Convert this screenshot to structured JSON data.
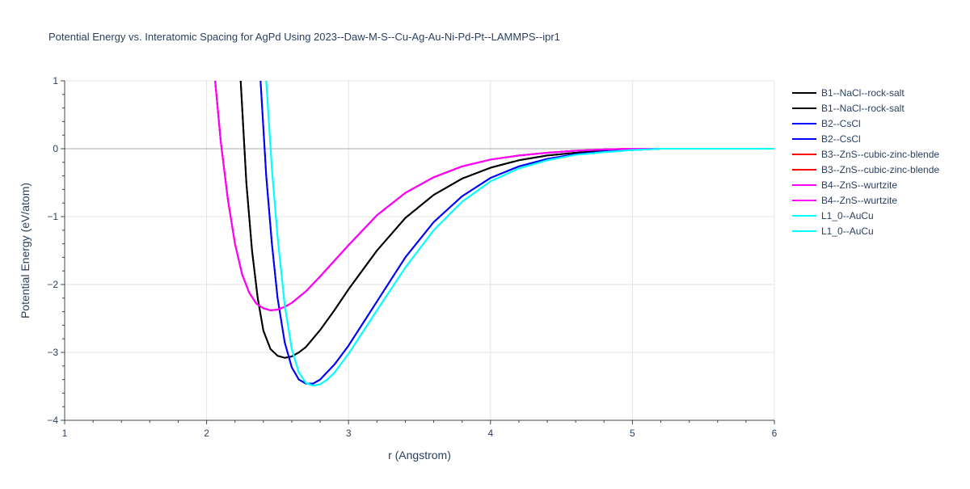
{
  "chart_data": {
    "type": "line",
    "title": "Potential Energy vs. Interatomic Spacing for AgPd Using 2023--Daw-M-S--Cu-Ag-Au-Ni-Pd-Pt--LAMMPS--ipr1",
    "xlabel": "r (Angstrom)",
    "ylabel": "Potential Energy (eV/atom)",
    "xlim": [
      1,
      6
    ],
    "ylim": [
      -4,
      1
    ],
    "xticks": [
      1,
      2,
      3,
      4,
      5,
      6
    ],
    "yticks": [
      -4,
      -3,
      -2,
      -1,
      0,
      1
    ],
    "ytick_labels": [
      "−4",
      "−3",
      "−2",
      "−1",
      "0",
      "1"
    ],
    "grid": true,
    "legend_position": "right",
    "series": [
      {
        "name": "B1--NaCl--rock-salt",
        "color": "#000000",
        "x": [
          2.24,
          2.28,
          2.32,
          2.36,
          2.4,
          2.45,
          2.5,
          2.55,
          2.6,
          2.65,
          2.7,
          2.8,
          2.9,
          3.0,
          3.2,
          3.4,
          3.6,
          3.8,
          4.0,
          4.2,
          4.4,
          4.6,
          4.8,
          5.0,
          5.2,
          6.0
        ],
        "y": [
          1.0,
          -0.5,
          -1.5,
          -2.2,
          -2.68,
          -2.95,
          -3.05,
          -3.08,
          -3.06,
          -3.0,
          -2.92,
          -2.67,
          -2.38,
          -2.07,
          -1.5,
          -1.02,
          -0.68,
          -0.44,
          -0.28,
          -0.17,
          -0.1,
          -0.06,
          -0.03,
          -0.01,
          0.0,
          0.0
        ]
      },
      {
        "name": "B1--NaCl--rock-salt",
        "color": "#000000",
        "x": [
          2.24,
          2.28,
          2.32,
          2.36,
          2.4,
          2.45,
          2.5,
          2.55,
          2.6,
          2.65,
          2.7,
          2.8,
          2.9,
          3.0,
          3.2,
          3.4,
          3.6,
          3.8,
          4.0,
          4.2,
          4.4,
          4.6,
          4.8,
          5.0,
          5.2,
          6.0
        ],
        "y": [
          1.0,
          -0.5,
          -1.5,
          -2.2,
          -2.68,
          -2.95,
          -3.05,
          -3.08,
          -3.06,
          -3.0,
          -2.92,
          -2.67,
          -2.38,
          -2.07,
          -1.5,
          -1.02,
          -0.68,
          -0.44,
          -0.28,
          -0.17,
          -0.1,
          -0.06,
          -0.03,
          -0.01,
          0.0,
          0.0
        ]
      },
      {
        "name": "B2--CsCl",
        "color": "#0000ff",
        "x": [
          2.38,
          2.42,
          2.46,
          2.5,
          2.55,
          2.6,
          2.65,
          2.7,
          2.75,
          2.8,
          2.9,
          3.0,
          3.2,
          3.4,
          3.6,
          3.8,
          4.0,
          4.2,
          4.4,
          4.6,
          4.8,
          5.0,
          5.2,
          6.0
        ],
        "y": [
          1.0,
          -0.4,
          -1.4,
          -2.2,
          -2.85,
          -3.22,
          -3.4,
          -3.46,
          -3.46,
          -3.4,
          -3.18,
          -2.9,
          -2.25,
          -1.6,
          -1.08,
          -0.7,
          -0.43,
          -0.26,
          -0.15,
          -0.08,
          -0.04,
          -0.02,
          0.0,
          0.0
        ]
      },
      {
        "name": "B2--CsCl",
        "color": "#0000ff",
        "x": [
          2.38,
          2.42,
          2.46,
          2.5,
          2.55,
          2.6,
          2.65,
          2.7,
          2.75,
          2.8,
          2.9,
          3.0,
          3.2,
          3.4,
          3.6,
          3.8,
          4.0,
          4.2,
          4.4,
          4.6,
          4.8,
          5.0,
          5.2,
          6.0
        ],
        "y": [
          1.0,
          -0.4,
          -1.4,
          -2.2,
          -2.85,
          -3.22,
          -3.4,
          -3.46,
          -3.46,
          -3.4,
          -3.18,
          -2.9,
          -2.25,
          -1.6,
          -1.08,
          -0.7,
          -0.43,
          -0.26,
          -0.15,
          -0.08,
          -0.04,
          -0.02,
          0.0,
          0.0
        ]
      },
      {
        "name": "B3--ZnS--cubic-zinc-blende",
        "color": "#ff0000",
        "x": [
          2.06,
          2.1,
          2.15,
          2.2,
          2.25,
          2.3,
          2.35,
          2.4,
          2.45,
          2.5,
          2.55,
          2.6,
          2.7,
          2.8,
          3.0,
          3.2,
          3.4,
          3.6,
          3.8,
          4.0,
          4.2,
          4.4,
          4.6,
          4.8,
          5.0,
          6.0
        ],
        "y": [
          1.0,
          0.1,
          -0.75,
          -1.4,
          -1.85,
          -2.12,
          -2.28,
          -2.35,
          -2.38,
          -2.37,
          -2.33,
          -2.27,
          -2.1,
          -1.88,
          -1.42,
          -0.98,
          -0.65,
          -0.42,
          -0.26,
          -0.16,
          -0.1,
          -0.06,
          -0.03,
          -0.01,
          0.0,
          0.0
        ]
      },
      {
        "name": "B3--ZnS--cubic-zinc-blende",
        "color": "#ff0000",
        "x": [
          2.06,
          2.1,
          2.15,
          2.2,
          2.25,
          2.3,
          2.35,
          2.4,
          2.45,
          2.5,
          2.55,
          2.6,
          2.7,
          2.8,
          3.0,
          3.2,
          3.4,
          3.6,
          3.8,
          4.0,
          4.2,
          4.4,
          4.6,
          4.8,
          5.0,
          6.0
        ],
        "y": [
          1.0,
          0.1,
          -0.75,
          -1.4,
          -1.85,
          -2.12,
          -2.28,
          -2.35,
          -2.38,
          -2.37,
          -2.33,
          -2.27,
          -2.1,
          -1.88,
          -1.42,
          -0.98,
          -0.65,
          -0.42,
          -0.26,
          -0.16,
          -0.1,
          -0.06,
          -0.03,
          -0.01,
          0.0,
          0.0
        ]
      },
      {
        "name": "B4--ZnS--wurtzite",
        "color": "#ff00ff",
        "x": [
          2.06,
          2.1,
          2.15,
          2.2,
          2.25,
          2.3,
          2.35,
          2.4,
          2.45,
          2.5,
          2.55,
          2.6,
          2.7,
          2.8,
          3.0,
          3.2,
          3.4,
          3.6,
          3.8,
          4.0,
          4.2,
          4.4,
          4.6,
          4.8,
          5.0,
          6.0
        ],
        "y": [
          1.0,
          0.1,
          -0.75,
          -1.4,
          -1.85,
          -2.12,
          -2.28,
          -2.35,
          -2.38,
          -2.37,
          -2.33,
          -2.27,
          -2.1,
          -1.88,
          -1.42,
          -0.98,
          -0.65,
          -0.42,
          -0.26,
          -0.16,
          -0.1,
          -0.06,
          -0.03,
          -0.01,
          0.0,
          0.0
        ]
      },
      {
        "name": "B4--ZnS--wurtzite",
        "color": "#ff00ff",
        "x": [
          2.06,
          2.1,
          2.15,
          2.2,
          2.25,
          2.3,
          2.35,
          2.4,
          2.45,
          2.5,
          2.55,
          2.6,
          2.7,
          2.8,
          3.0,
          3.2,
          3.4,
          3.6,
          3.8,
          4.0,
          4.2,
          4.4,
          4.6,
          4.8,
          5.0,
          6.0
        ],
        "y": [
          1.0,
          0.1,
          -0.75,
          -1.4,
          -1.85,
          -2.12,
          -2.28,
          -2.35,
          -2.38,
          -2.37,
          -2.33,
          -2.27,
          -2.1,
          -1.88,
          -1.42,
          -0.98,
          -0.65,
          -0.42,
          -0.26,
          -0.16,
          -0.1,
          -0.06,
          -0.03,
          -0.01,
          0.0,
          0.0
        ]
      },
      {
        "name": "L1_0--AuCu",
        "color": "#00ffff",
        "x": [
          2.42,
          2.46,
          2.5,
          2.55,
          2.6,
          2.65,
          2.7,
          2.75,
          2.8,
          2.85,
          2.9,
          3.0,
          3.2,
          3.4,
          3.6,
          3.8,
          4.0,
          4.2,
          4.4,
          4.6,
          4.8,
          5.0,
          5.2,
          6.0
        ],
        "y": [
          1.0,
          -0.3,
          -1.3,
          -2.3,
          -2.95,
          -3.3,
          -3.45,
          -3.49,
          -3.47,
          -3.4,
          -3.3,
          -3.02,
          -2.38,
          -1.75,
          -1.2,
          -0.78,
          -0.48,
          -0.29,
          -0.17,
          -0.09,
          -0.05,
          -0.02,
          0.0,
          0.0
        ]
      },
      {
        "name": "L1_0--AuCu",
        "color": "#00ffff",
        "x": [
          2.42,
          2.46,
          2.5,
          2.55,
          2.6,
          2.65,
          2.7,
          2.75,
          2.8,
          2.85,
          2.9,
          3.0,
          3.2,
          3.4,
          3.6,
          3.8,
          4.0,
          4.2,
          4.4,
          4.6,
          4.8,
          5.0,
          5.2,
          6.0
        ],
        "y": [
          1.0,
          -0.3,
          -1.3,
          -2.3,
          -2.95,
          -3.3,
          -3.45,
          -3.49,
          -3.47,
          -3.4,
          -3.3,
          -3.02,
          -2.38,
          -1.75,
          -1.2,
          -0.78,
          -0.48,
          -0.29,
          -0.17,
          -0.09,
          -0.05,
          -0.02,
          0.0,
          0.0
        ]
      }
    ]
  }
}
